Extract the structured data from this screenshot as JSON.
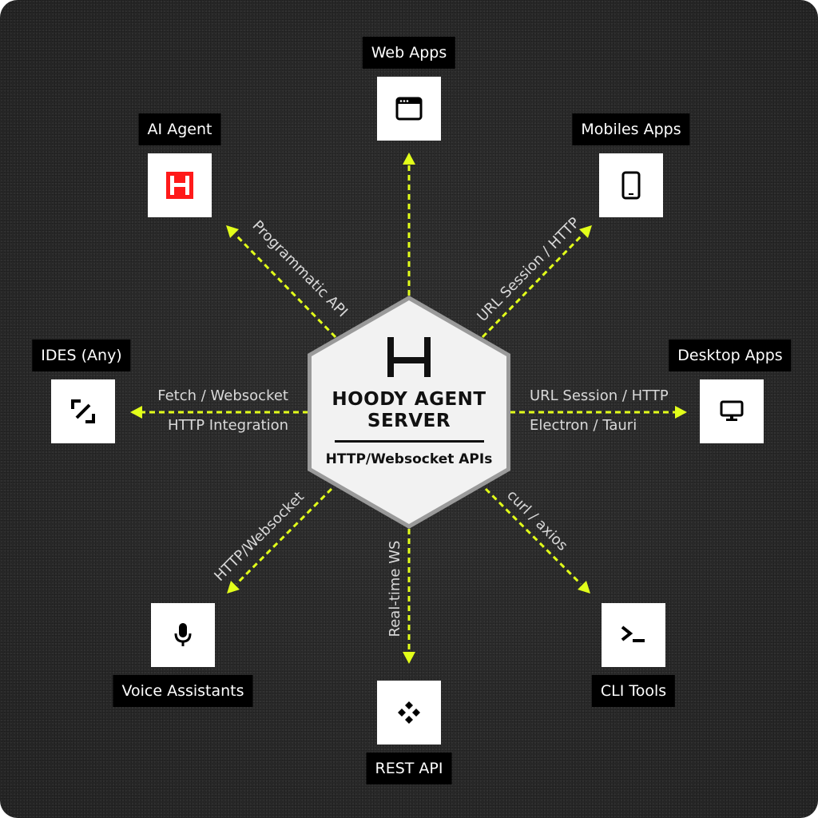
{
  "server": {
    "title_line1": "HOODY AGENT",
    "title_line2": "SERVER",
    "subtitle": "HTTP/Websocket APIs",
    "logo_icon": "hoody-logo-icon"
  },
  "nodes": {
    "web_apps": {
      "label": "Web Apps",
      "icon": "browser-window-icon"
    },
    "ai_agent": {
      "label": "AI Agent",
      "icon": "hoody-logo-icon"
    },
    "mobile_apps": {
      "label": "Mobiles Apps",
      "icon": "smartphone-icon"
    },
    "ides": {
      "label": "IDES (Any)",
      "icon": "ide-icon"
    },
    "desktop_apps": {
      "label": "Desktop Apps",
      "icon": "monitor-icon"
    },
    "voice": {
      "label": "Voice Assistants",
      "icon": "microphone-icon"
    },
    "rest_api": {
      "label": "REST API",
      "icon": "api-diamond-icon"
    },
    "cli": {
      "label": "CLI Tools",
      "icon": "terminal-icon"
    }
  },
  "edges": {
    "ai_agent": "Programmatic API",
    "mobile": "URL Session / HTTP",
    "ides_1": "Fetch / Websocket",
    "ides_2": "HTTP Integration",
    "desktop_1": "URL Session / HTTP",
    "desktop_2": "Electron / Tauri",
    "voice": "HTTP/Websocket",
    "rest": "Real-time WS",
    "cli": "curl / axios"
  },
  "colors": {
    "accent": "#e2ff1a",
    "background": "#2b2b2b",
    "ai_red": "#ff1a1a"
  }
}
